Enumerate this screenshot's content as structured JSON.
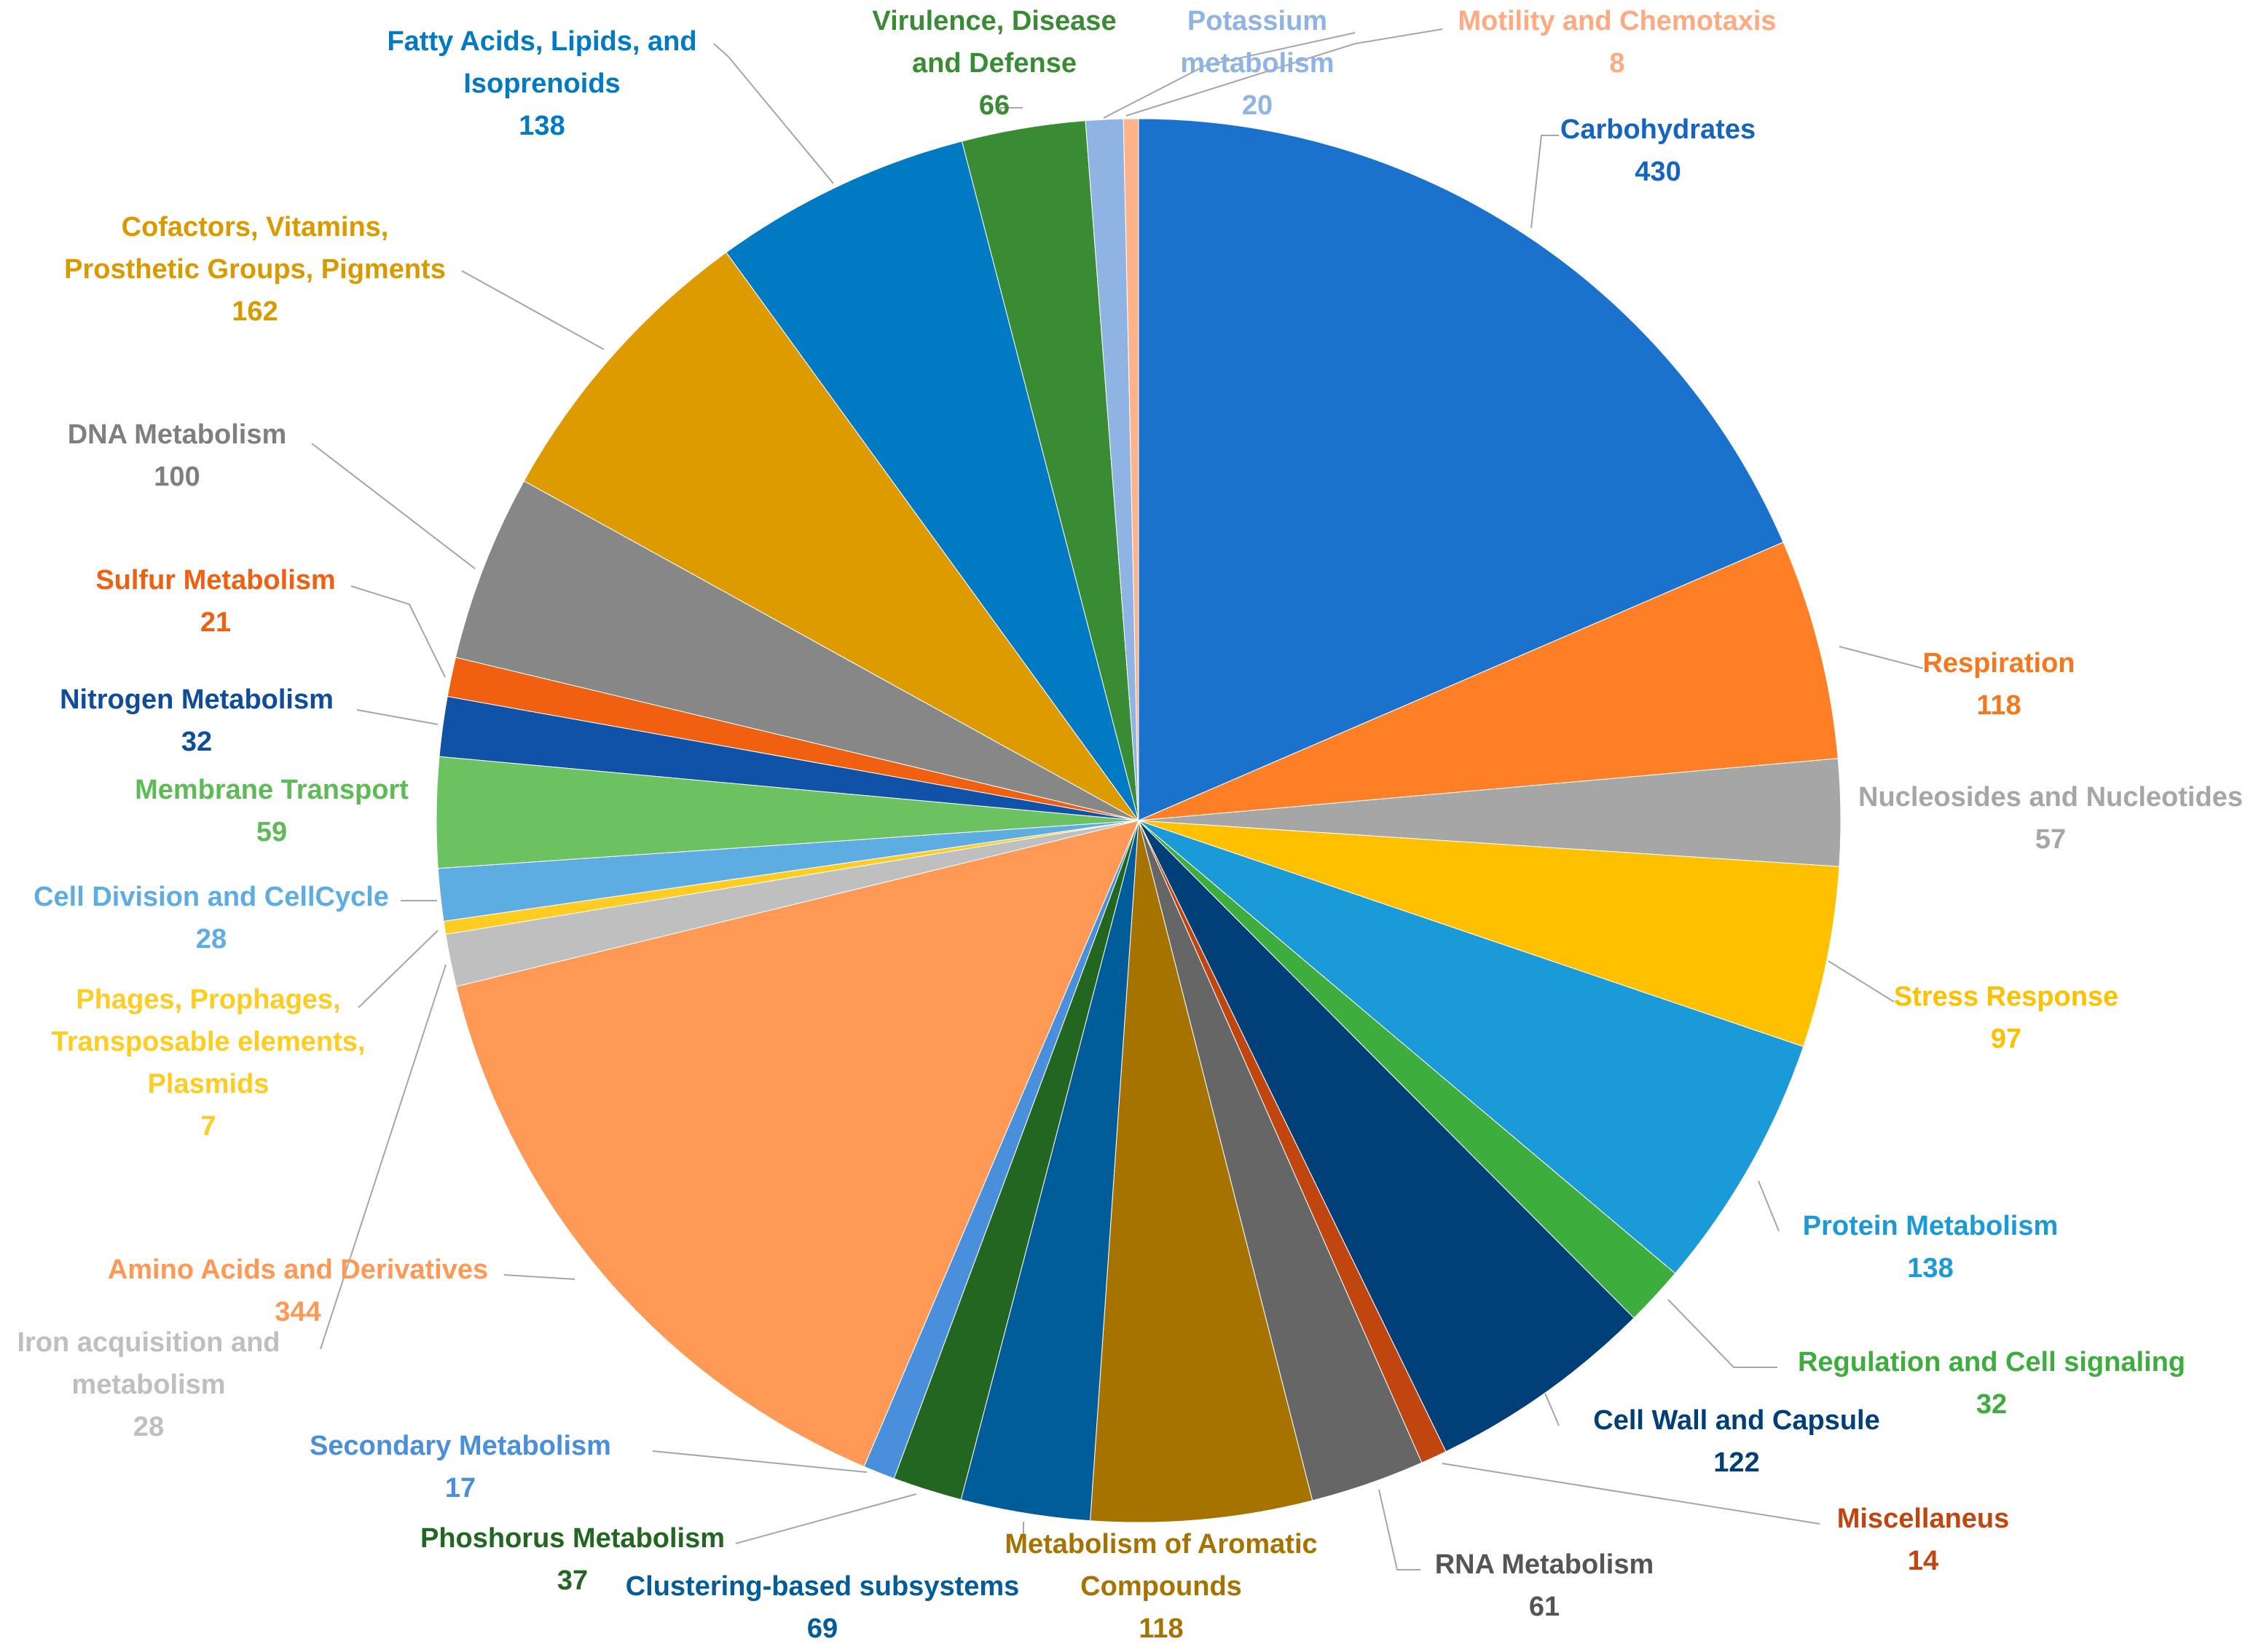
{
  "chart_data": {
    "type": "pie",
    "title": "",
    "legend": "none",
    "start_angle_deg": 0,
    "direction": "clockwise",
    "slices": [
      {
        "name": "Carbohydrates",
        "label_lines": [
          "Carbohydrates"
        ],
        "value": 430,
        "value_text": "430",
        "color": "#1A72CC",
        "label_color": "#1565C0"
      },
      {
        "name": "Respiration",
        "label_lines": [
          "Respiration"
        ],
        "value": 118,
        "value_text": "118",
        "color": "#FF7F27",
        "label_color": "#F5781E"
      },
      {
        "name": "Nucleosides and Nucleotides",
        "label_lines": [
          "Nucleosides and Nucleotides"
        ],
        "value": 57,
        "value_text": "57",
        "color": "#A6A6A6",
        "label_color": "#A6A6A6"
      },
      {
        "name": "Stress Response",
        "label_lines": [
          "Stress Response"
        ],
        "value": 97,
        "value_text": "97",
        "color": "#FFC000",
        "label_color": "#FFC000"
      },
      {
        "name": "Protein Metabolism",
        "label_lines": [
          "Protein Metabolism"
        ],
        "value": 138,
        "value_text": "138",
        "color": "#1A9AD6",
        "label_color": "#1A9AD6"
      },
      {
        "name": "Regulation and Cell signaling",
        "label_lines": [
          "Regulation and Cell signaling"
        ],
        "value": 32,
        "value_text": "32",
        "color": "#3DAE3D",
        "label_color": "#3DAE3D"
      },
      {
        "name": "Cell Wall and Capsule",
        "label_lines": [
          "Cell Wall and Capsule"
        ],
        "value": 122,
        "value_text": "122",
        "color": "#003F78",
        "label_color": "#003F78"
      },
      {
        "name": "Miscellaneus",
        "label_lines": [
          "Miscellaneus"
        ],
        "value": 14,
        "value_text": "14",
        "color": "#C0450F",
        "label_color": "#C0450F"
      },
      {
        "name": "RNA Metabolism",
        "label_lines": [
          "RNA Metabolism"
        ],
        "value": 61,
        "value_text": "61",
        "color": "#666666",
        "label_color": "#555555"
      },
      {
        "name": "Metabolism of Aromatic Compounds",
        "label_lines": [
          "Metabolism of Aromatic",
          "Compounds"
        ],
        "value": 118,
        "value_text": "118",
        "color": "#A67300",
        "label_color": "#A67300"
      },
      {
        "name": "Clustering-based subsystems",
        "label_lines": [
          "Clustering-based subsystems"
        ],
        "value": 69,
        "value_text": "69",
        "color": "#005D9A",
        "label_color": "#005D9A"
      },
      {
        "name": "Phoshorus Metabolism",
        "label_lines": [
          "Phoshorus Metabolism"
        ],
        "value": 37,
        "value_text": "37",
        "color": "#226622",
        "label_color": "#226622"
      },
      {
        "name": "Secondary Metabolism",
        "label_lines": [
          "Secondary Metabolism"
        ],
        "value": 17,
        "value_text": "17",
        "color": "#4A8FDB",
        "label_color": "#4A8FDB"
      },
      {
        "name": "Amino Acids and Derivatives",
        "label_lines": [
          "Amino Acids and Derivatives"
        ],
        "value": 344,
        "value_text": "344",
        "color": "#FF9955",
        "label_color": "#FF9955"
      },
      {
        "name": "Iron acquisition and metabolism",
        "label_lines": [
          "Iron acquisition and",
          "metabolism"
        ],
        "value": 28,
        "value_text": "28",
        "color": "#BFBFBF",
        "label_color": "#BFBFBF"
      },
      {
        "name": "Phages, Prophages, Transposable elements, Plasmids",
        "label_lines": [
          "Phages, Prophages,",
          "Transposable elements,",
          "Plasmids"
        ],
        "value": 7,
        "value_text": "7",
        "color": "#FFCC22",
        "label_color": "#FFCC22"
      },
      {
        "name": "Cell Division and CellCycle",
        "label_lines": [
          "Cell Division and CellCycle"
        ],
        "value": 28,
        "value_text": "28",
        "color": "#5DADE2",
        "label_color": "#5DADE2"
      },
      {
        "name": "Membrane Transport",
        "label_lines": [
          "Membrane Transport"
        ],
        "value": 59,
        "value_text": "59",
        "color": "#6CC160",
        "label_color": "#5DBB55"
      },
      {
        "name": "Nitrogen Metabolism",
        "label_lines": [
          "Nitrogen Metabolism"
        ],
        "value": 32,
        "value_text": "32",
        "color": "#0F52A8",
        "label_color": "#0F4C9C"
      },
      {
        "name": "Sulfur Metabolism",
        "label_lines": [
          "Sulfur Metabolism"
        ],
        "value": 21,
        "value_text": "21",
        "color": "#F06010",
        "label_color": "#F06010"
      },
      {
        "name": "DNA Metabolism",
        "label_lines": [
          "DNA Metabolism"
        ],
        "value": 100,
        "value_text": "100",
        "color": "#878787",
        "label_color": "#7F7F7F"
      },
      {
        "name": "Cofactors, Vitamins, Prosthetic Groups, Pigments",
        "label_lines": [
          "Cofactors, Vitamins,",
          "Prosthetic Groups, Pigments"
        ],
        "value": 162,
        "value_text": "162",
        "color": "#DE9B00",
        "label_color": "#D99A00"
      },
      {
        "name": "Fatty Acids, Lipids, and Isoprenoids",
        "label_lines": [
          "Fatty Acids, Lipids, and",
          "Isoprenoids"
        ],
        "value": 138,
        "value_text": "138",
        "color": "#007AC2",
        "label_color": "#007AC2"
      },
      {
        "name": "Virulence, Disease and Defense",
        "label_lines": [
          "Virulence, Disease",
          "and Defense"
        ],
        "value": 66,
        "value_text": "66",
        "color": "#3A8C34",
        "label_color": "#3A8C34"
      },
      {
        "name": "Potassium metabolism",
        "label_lines": [
          "Potassium",
          "metabolism"
        ],
        "value": 20,
        "value_text": "20",
        "color": "#8FB4E3",
        "label_color": "#8FB4E3"
      },
      {
        "name": "Motility and Chemotaxis",
        "label_lines": [
          "Motility and Chemotaxis"
        ],
        "value": 8,
        "value_text": "8",
        "color": "#FFB38A",
        "label_color": "#FFAA80"
      }
    ]
  }
}
